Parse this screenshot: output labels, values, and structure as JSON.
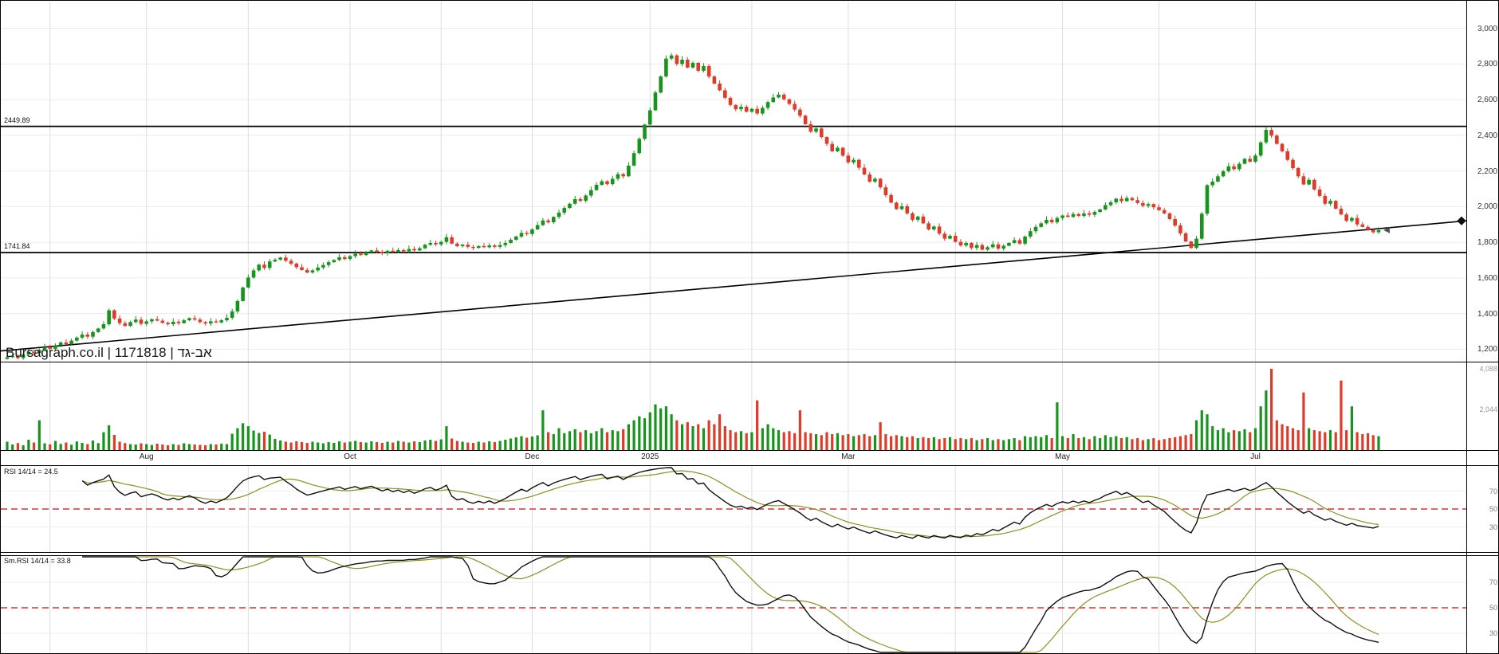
{
  "chart_data": {
    "type": "candlestick",
    "title": "Bursagraph.co.il | 1171818 | אב-גד",
    "price_axis": {
      "min": 1130,
      "max": 3150,
      "ticks": [
        {
          "v": 3000,
          "label": "3,000"
        },
        {
          "v": 2800,
          "label": "2,800"
        },
        {
          "v": 2600,
          "label": "2,600"
        },
        {
          "v": 2400,
          "label": "2,400"
        },
        {
          "v": 2200,
          "label": "2,200"
        },
        {
          "v": 2000,
          "label": "2,000"
        },
        {
          "v": 1800,
          "label": "1,800"
        },
        {
          "v": 1600,
          "label": "1,600"
        },
        {
          "v": 1400,
          "label": "1,400"
        },
        {
          "v": 1200,
          "label": "1,200"
        }
      ]
    },
    "hlines": [
      {
        "value": 2449.89,
        "label": "2449.89"
      },
      {
        "value": 1741.84,
        "label": "1741.84"
      }
    ],
    "trendline": {
      "start_value": 1190,
      "end_value": 1920
    },
    "months": [
      {
        "i": 8,
        "label": ""
      },
      {
        "i": 26,
        "label": "Aug"
      },
      {
        "i": 45,
        "label": ""
      },
      {
        "i": 64,
        "label": "Oct"
      },
      {
        "i": 81,
        "label": ""
      },
      {
        "i": 98,
        "label": "Dec"
      },
      {
        "i": 120,
        "label": "2025"
      },
      {
        "i": 139,
        "label": ""
      },
      {
        "i": 157,
        "label": "Mar"
      },
      {
        "i": 177,
        "label": ""
      },
      {
        "i": 197,
        "label": "May"
      },
      {
        "i": 215,
        "label": ""
      },
      {
        "i": 233,
        "label": "Jul"
      }
    ],
    "colors": {
      "up": "#17941d",
      "down": "#e03a2a",
      "rsi_line": "#111111",
      "rsi_smooth": "#8f8f1f",
      "midline": "#e03030",
      "grid": "#dddddd",
      "hgrid": "#ececec"
    },
    "candles": {
      "closes": [
        1155,
        1162,
        1150,
        1170,
        1185,
        1178,
        1196,
        1210,
        1202,
        1222,
        1238,
        1228,
        1248,
        1265,
        1282,
        1270,
        1296,
        1316,
        1340,
        1418,
        1372,
        1346,
        1330,
        1352,
        1366,
        1342,
        1356,
        1368,
        1360,
        1348,
        1340,
        1354,
        1346,
        1362,
        1374,
        1366,
        1352,
        1344,
        1356,
        1350,
        1362,
        1376,
        1412,
        1470,
        1546,
        1602,
        1642,
        1674,
        1656,
        1692,
        1702,
        1714,
        1696,
        1680,
        1660,
        1644,
        1630,
        1642,
        1658,
        1672,
        1688,
        1700,
        1716,
        1706,
        1722,
        1736,
        1728,
        1742,
        1754,
        1746,
        1738,
        1752,
        1744,
        1756,
        1748,
        1762,
        1754,
        1766,
        1786,
        1796,
        1788,
        1802,
        1828,
        1792,
        1778,
        1786,
        1774,
        1768,
        1778,
        1772,
        1782,
        1774,
        1784,
        1796,
        1814,
        1832,
        1852,
        1846,
        1872,
        1896,
        1922,
        1912,
        1942,
        1966,
        1992,
        2016,
        2042,
        2032,
        2062,
        2092,
        2122,
        2142,
        2126,
        2156,
        2182,
        2170,
        2230,
        2300,
        2380,
        2460,
        2540,
        2640,
        2730,
        2830,
        2848,
        2800,
        2824,
        2780,
        2806,
        2762,
        2788,
        2730,
        2690,
        2652,
        2610,
        2570,
        2546,
        2560,
        2532,
        2548,
        2522,
        2554,
        2586,
        2612,
        2628,
        2602,
        2576,
        2544,
        2510,
        2462,
        2420,
        2438,
        2390,
        2352,
        2310,
        2330,
        2286,
        2248,
        2262,
        2218,
        2180,
        2140,
        2156,
        2108,
        2064,
        2022,
        1986,
        2002,
        1962,
        1926,
        1944,
        1906,
        1872,
        1888,
        1848,
        1820,
        1836,
        1802,
        1782,
        1796,
        1768,
        1784,
        1758,
        1772,
        1788,
        1764,
        1780,
        1796,
        1812,
        1792,
        1832,
        1862,
        1886,
        1906,
        1926,
        1912,
        1936,
        1950,
        1942,
        1958,
        1948,
        1962,
        1954,
        1970,
        1984,
        2008,
        2024,
        2044,
        2030,
        2048,
        2036,
        2020,
        2004,
        2014,
        1996,
        1980,
        1962,
        1930,
        1894,
        1850,
        1804,
        1768,
        1820,
        1960,
        2120,
        2140,
        2170,
        2198,
        2226,
        2210,
        2240,
        2268,
        2252,
        2286,
        2360,
        2430,
        2398,
        2352,
        2310,
        2262,
        2216,
        2170,
        2124,
        2150,
        2096,
        2060,
        2016,
        2032,
        1988,
        1956,
        1920,
        1936,
        1900,
        1886,
        1870,
        1856,
        1868
      ]
    },
    "volume": {
      "scale_max": 4088,
      "ticks": [
        {
          "v": 4088,
          "label": "4,088"
        },
        {
          "v": 2044,
          "label": "2,044"
        }
      ],
      "values": [
        420,
        280,
        350,
        240,
        520,
        380,
        1500,
        340,
        290,
        460,
        310,
        380,
        270,
        430,
        360,
        300,
        480,
        350,
        900,
        1250,
        760,
        420,
        350,
        300,
        280,
        340,
        300,
        260,
        320,
        280,
        240,
        300,
        260,
        340,
        300,
        280,
        260,
        240,
        300,
        280,
        320,
        300,
        820,
        1100,
        1350,
        1200,
        980,
        860,
        920,
        780,
        560,
        480,
        420,
        380,
        440,
        400,
        360,
        420,
        380,
        340,
        400,
        360,
        440,
        380,
        420,
        460,
        400,
        380,
        440,
        400,
        360,
        420,
        380,
        460,
        420,
        380,
        440,
        400,
        480,
        520,
        460,
        540,
        1200,
        580,
        460,
        420,
        380,
        360,
        420,
        380,
        440,
        400,
        460,
        520,
        580,
        640,
        700,
        620,
        680,
        740,
        2000,
        900,
        800,
        1100,
        850,
        950,
        1050,
        900,
        1000,
        850,
        950,
        1100,
        900,
        1000,
        950,
        1050,
        1300,
        1500,
        1700,
        1600,
        1900,
        2300,
        2100,
        2200,
        1800,
        1500,
        1300,
        1400,
        1200,
        1300,
        1100,
        1500,
        1300,
        1800,
        1200,
        1000,
        900,
        950,
        850,
        900,
        2500,
        1100,
        1300,
        1100,
        1000,
        900,
        950,
        850,
        2000,
        900,
        850,
        800,
        750,
        900,
        800,
        850,
        750,
        800,
        700,
        750,
        800,
        700,
        750,
        1400,
        800,
        700,
        750,
        700,
        650,
        700,
        600,
        650,
        600,
        650,
        550,
        600,
        650,
        550,
        600,
        550,
        600,
        500,
        550,
        600,
        500,
        550,
        500,
        550,
        600,
        500,
        700,
        650,
        700,
        650,
        750,
        600,
        2400,
        700,
        600,
        800,
        600,
        650,
        550,
        700,
        600,
        750,
        650,
        700,
        600,
        650,
        550,
        600,
        500,
        550,
        600,
        500,
        550,
        600,
        650,
        700,
        750,
        800,
        1500,
        2000,
        1800,
        1200,
        1000,
        1100,
        900,
        1000,
        950,
        1050,
        900,
        1100,
        2200,
        3000,
        4088,
        1500,
        1300,
        1200,
        1100,
        1000,
        2900,
        1100,
        1000,
        950,
        900,
        1000,
        900,
        3500,
        1000,
        2200,
        900,
        800,
        850,
        750,
        700
      ]
    },
    "rsi": {
      "label": "RSI 14/14 = 24.5",
      "period": 14,
      "last_value": 24.5,
      "ticks": [
        {
          "v": 70,
          "label": "70"
        },
        {
          "v": 50,
          "label": "50"
        },
        {
          "v": 30,
          "label": "30"
        }
      ]
    },
    "smrsi": {
      "label": "Sm.RSI 14/14 = 33.8",
      "period": 14,
      "last_value": 33.8,
      "ticks": [
        {
          "v": 70,
          "label": "70"
        },
        {
          "v": 50,
          "label": "50"
        },
        {
          "v": 30,
          "label": "30"
        }
      ]
    }
  }
}
